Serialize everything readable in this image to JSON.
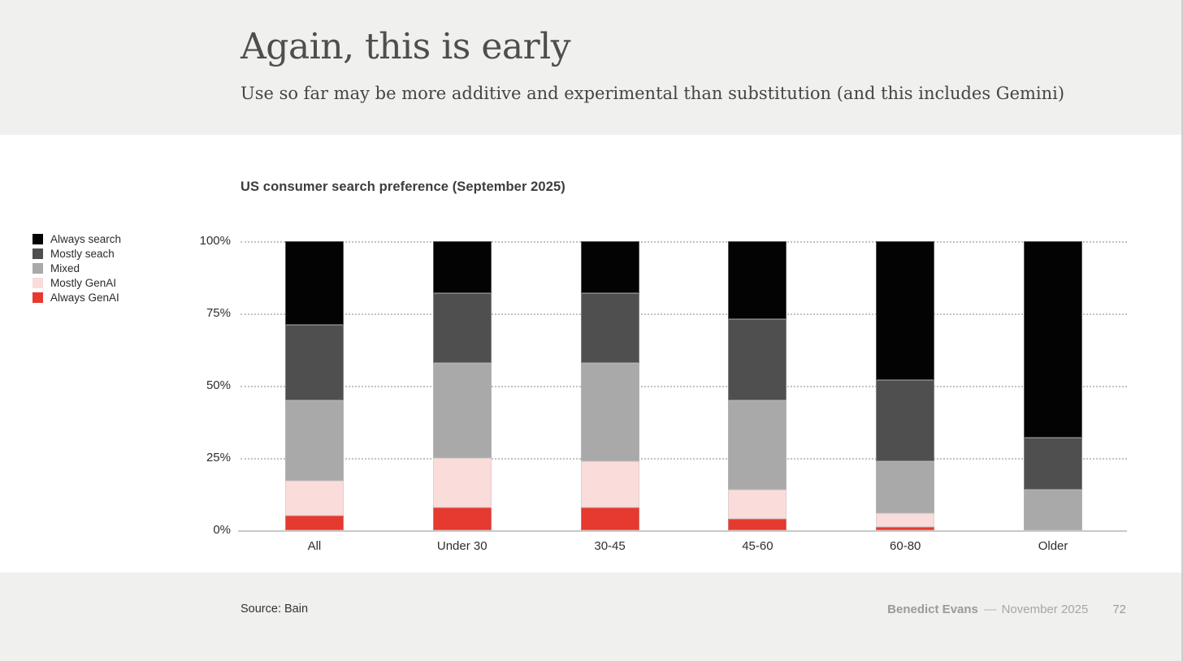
{
  "slide": {
    "title": "Again, this is early",
    "subtitle": "Use so far may be more additive and experimental than substitution (and this includes Gemini)",
    "source": "Source: Bain",
    "footer": {
      "author": "Benedict Evans",
      "dash": "––",
      "date": "November 2025",
      "page": "72"
    }
  },
  "chart_data": {
    "type": "bar",
    "stacked": true,
    "normalized": true,
    "title": "US consumer search preference (September 2025)",
    "categories": [
      "All",
      "Under 30",
      "30-45",
      "45-60",
      "60-80",
      "Older"
    ],
    "series": [
      {
        "name": "Always GenAI",
        "color": "#e6392f",
        "values": [
          5,
          8,
          8,
          4,
          1,
          0
        ]
      },
      {
        "name": "Mostly GenAI",
        "color": "#fadcda",
        "values": [
          12,
          17,
          16,
          10,
          5,
          0
        ]
      },
      {
        "name": "Mixed",
        "color": "#a9a9a9",
        "values": [
          28,
          33,
          34,
          31,
          18,
          14
        ]
      },
      {
        "name": "Mostly seach",
        "color": "#4f4f4f",
        "values": [
          26,
          24,
          24,
          28,
          28,
          18
        ]
      },
      {
        "name": "Always search",
        "color": "#030303",
        "values": [
          29,
          18,
          18,
          27,
          48,
          68
        ]
      }
    ],
    "legend_order": [
      "Always search",
      "Mostly seach",
      "Mixed",
      "Mostly GenAI",
      "Always GenAI"
    ],
    "y_ticks": [
      {
        "label": "100%",
        "value": 100
      },
      {
        "label": "75%",
        "value": 75
      },
      {
        "label": "50%",
        "value": 50
      },
      {
        "label": "25%",
        "value": 25
      },
      {
        "label": "0%",
        "value": 0
      }
    ],
    "ylim": [
      0,
      100
    ],
    "grid": "dotted-horizontal",
    "legend_position": "left"
  }
}
